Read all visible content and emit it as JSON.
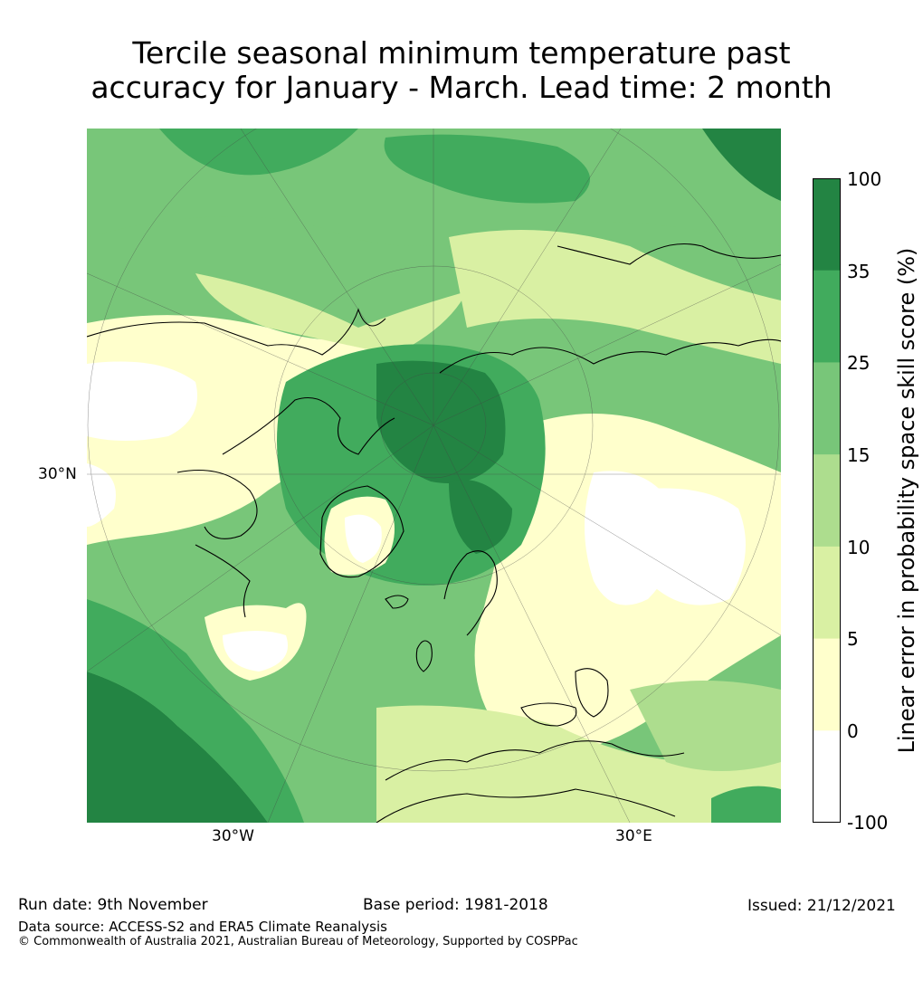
{
  "title": {
    "line1": "Tercile seasonal minimum temperature past",
    "line2": "accuracy for January - March. Lead time: 2 month"
  },
  "map": {
    "latitude_label": "30°N",
    "longitude_labels": [
      "30°W",
      "30°E"
    ]
  },
  "colorbar": {
    "label": "Linear error in probability space skill score (%)",
    "ticks": [
      "100",
      "35",
      "25",
      "15",
      "10",
      "5",
      "0",
      "-100"
    ],
    "bins": [
      {
        "range": "35–100",
        "color": "#238443"
      },
      {
        "range": "25–35",
        "color": "#41ab5d"
      },
      {
        "range": "15–25",
        "color": "#78c679"
      },
      {
        "range": "10–15",
        "color": "#addd8e"
      },
      {
        "range": "5–10",
        "color": "#d9f0a3"
      },
      {
        "range": "0–5",
        "color": "#ffffcc"
      },
      {
        "range": "-100–0",
        "color": "#ffffff"
      }
    ]
  },
  "footer": {
    "run_date": "Run date: 9th November",
    "base_period": "Base period: 1981-2018",
    "issued": "Issued: 21/12/2021",
    "data_source": "Data source: ACCESS-S2 and ERA5 Climate Reanalysis",
    "copyright": "© Commonwealth of Australia 2021, Australian Bureau of Meteorology, Supported by COSPPac"
  }
}
